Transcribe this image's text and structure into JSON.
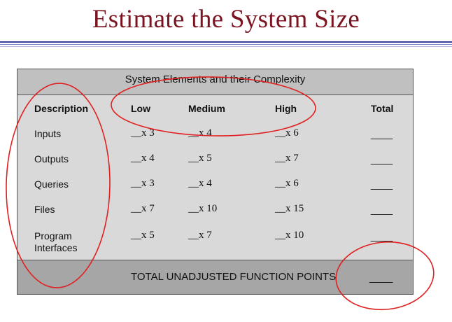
{
  "slide": {
    "title": "Estimate the System Size"
  },
  "table": {
    "caption": "System Elements and their Complexity",
    "headers": {
      "description": "Description",
      "low": "Low",
      "medium": "Medium",
      "high": "High",
      "total": "Total"
    },
    "rows": [
      {
        "description": "Inputs",
        "low": "__x 3",
        "medium": "__x 4",
        "high": "__x 6",
        "total": "____"
      },
      {
        "description": "Outputs",
        "low": "__x 4",
        "medium": "__x 5",
        "high": "__x 7",
        "total": "____"
      },
      {
        "description": "Queries",
        "low": "__x 3",
        "medium": "__x 4",
        "high": "__x 6",
        "total": "____"
      },
      {
        "description": "Files",
        "low": "__x 7",
        "medium": "__x 10",
        "high": "__x 15",
        "total": "____"
      },
      {
        "description": "Program\nInterfaces",
        "low": "__x 5",
        "medium": "__x 7",
        "high": "__x 10",
        "total": "____"
      }
    ],
    "footer": {
      "label": "TOTAL UNADJUSTED FUNCTION POINTS",
      "total": "____"
    }
  },
  "annotations": {
    "color": "#e02020"
  },
  "colors": {
    "title": "#7a1420",
    "rule": "#3b3f9c",
    "table_body": "#d9d9d9",
    "caption_band": "#c0c0c0",
    "footer_band": "#a6a6a6"
  }
}
